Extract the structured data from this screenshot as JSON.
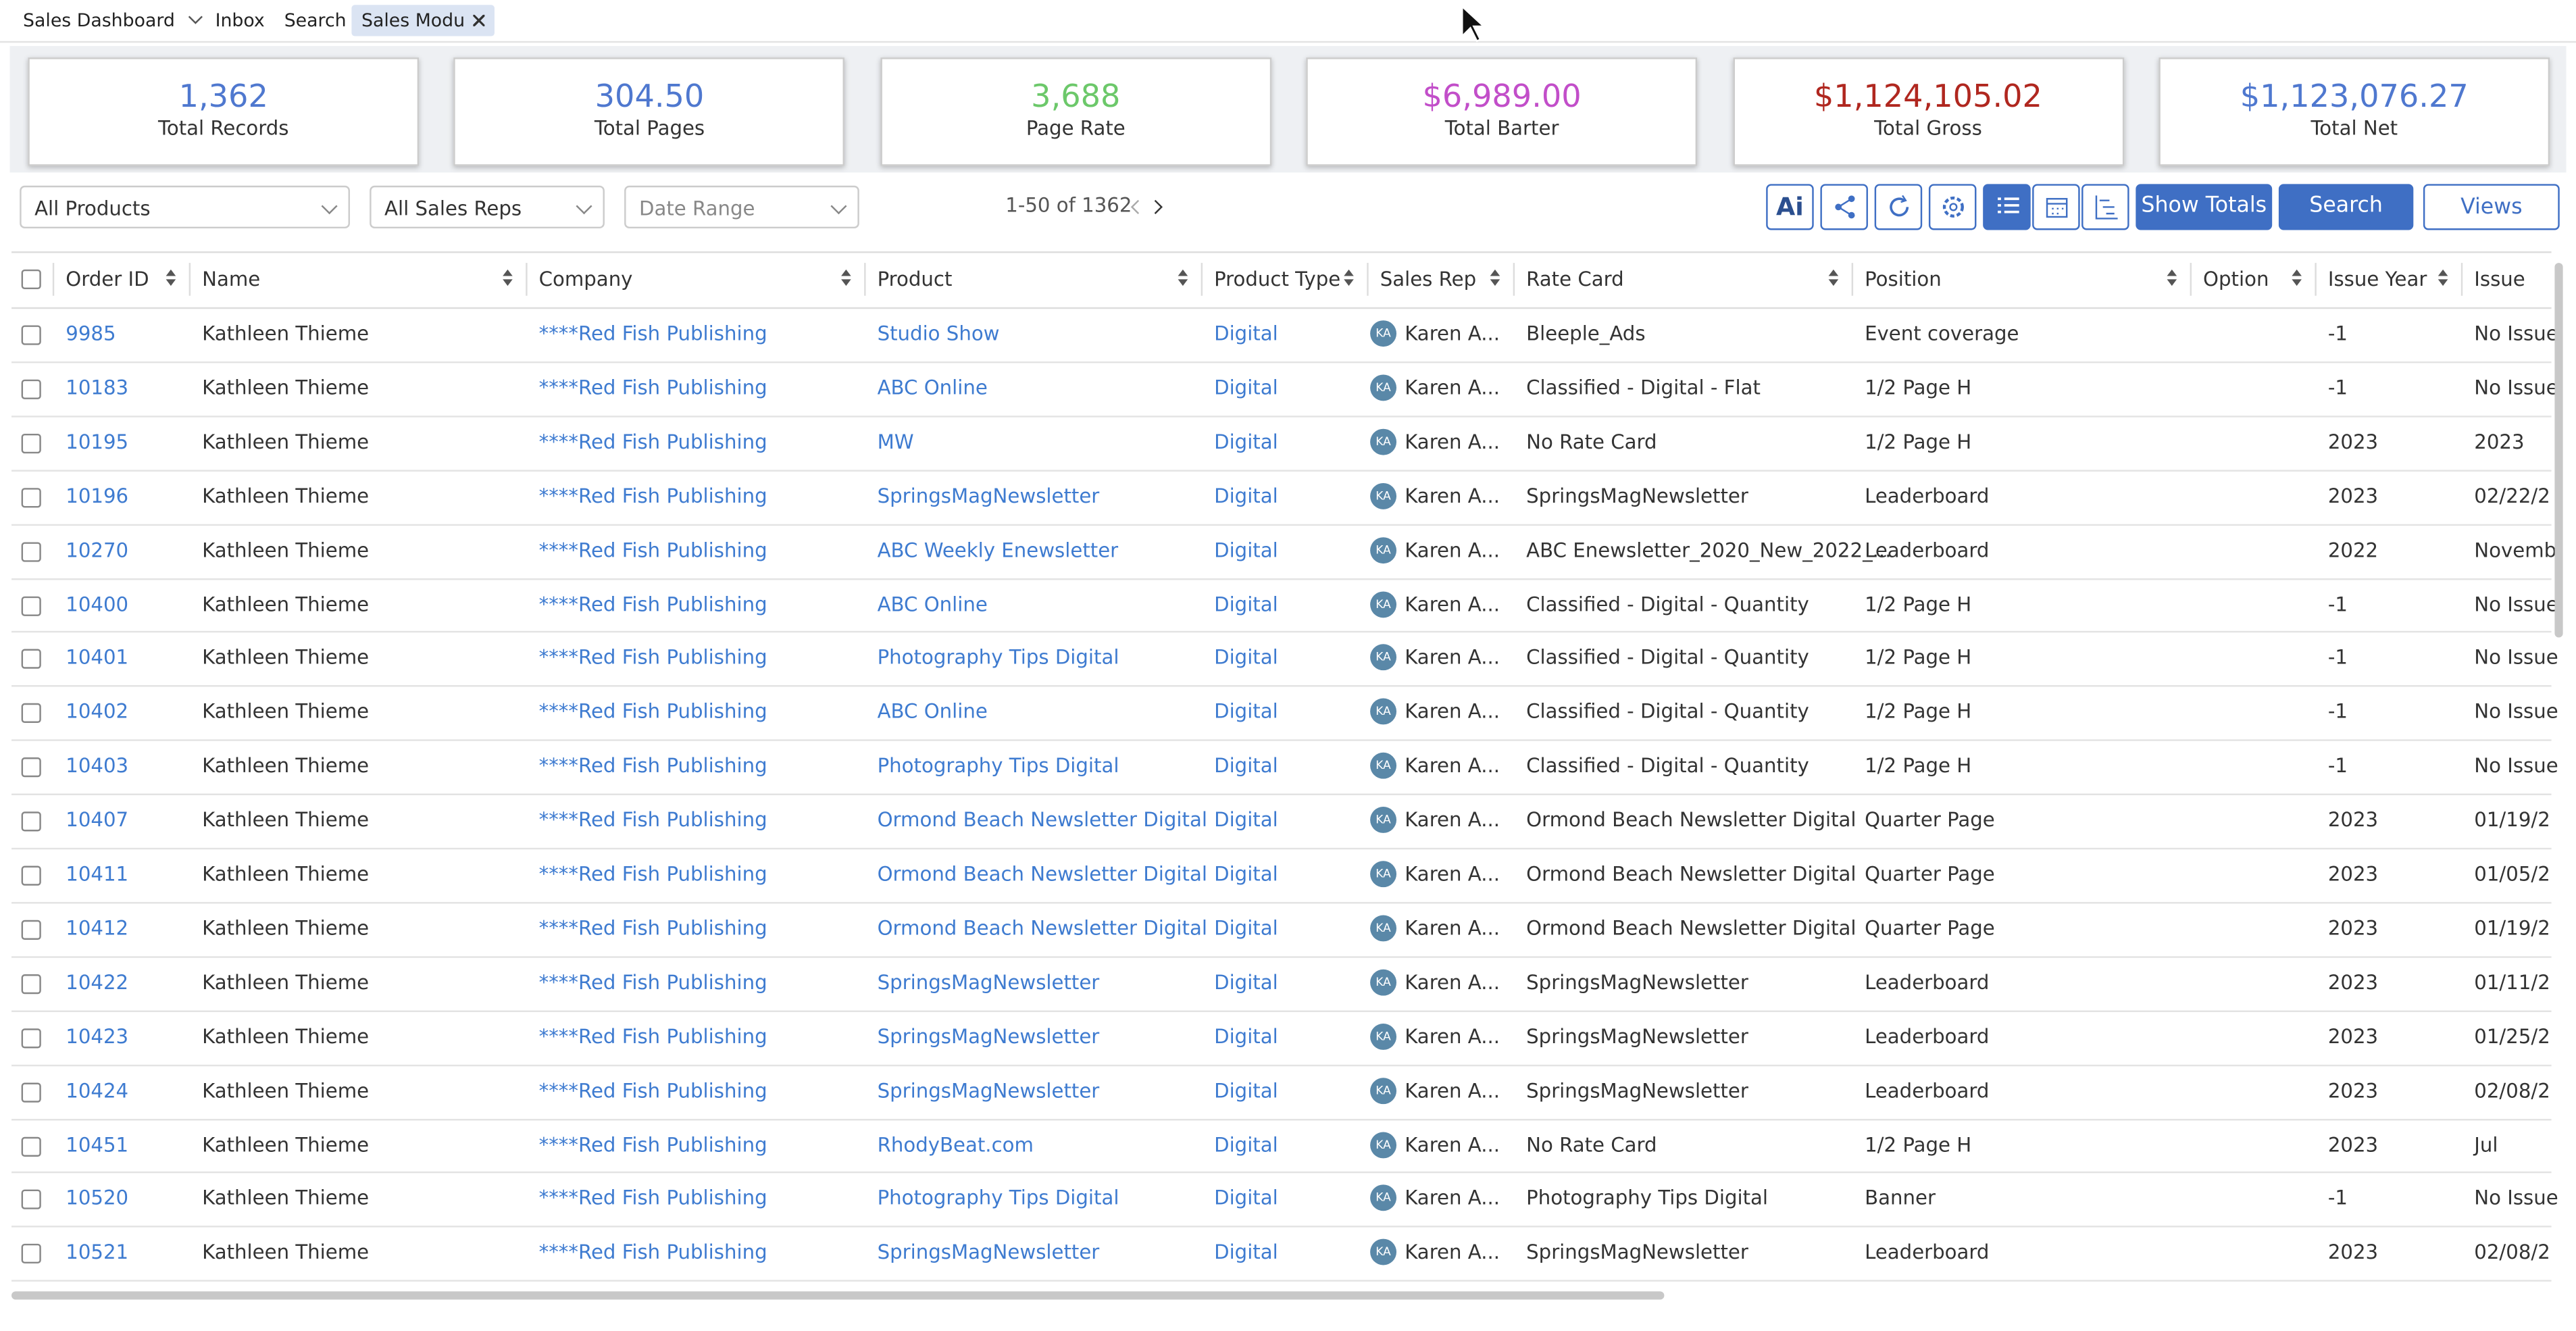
{
  "tabs": [
    "Sales Dashboard",
    "Inbox",
    "Search",
    "Sales Modu"
  ],
  "stats": [
    {
      "value": "1,362",
      "label": "Total Records"
    },
    {
      "value": "304.50",
      "label": "Total Pages"
    },
    {
      "value": "3,688",
      "label": "Page Rate"
    },
    {
      "value": "$6,989.00",
      "label": "Total Barter"
    },
    {
      "value": "$1,124,105.02",
      "label": "Total Gross"
    },
    {
      "value": "$1,123,076.27",
      "label": "Total Net"
    }
  ],
  "filters": [
    "All Products",
    "All Sales Reps",
    "Date Range"
  ],
  "pagination": "1-50 of 1362",
  "buttons": {
    "ai": "Ai",
    "show_totals": "Show Totals",
    "search": "Search",
    "views": "Views"
  },
  "table": {
    "columns": [
      "Order ID",
      "Name",
      "Company",
      "Product",
      "Product Type",
      "Sales Rep",
      "Rate Card",
      "Position",
      "Option",
      "Issue Year",
      "Issue"
    ],
    "rows": [
      [
        "9985",
        "Kathleen Thieme",
        "****Red Fish Publishing",
        "Studio Show",
        "Digital",
        "KA",
        "Karen A...",
        "Bleeple_Ads",
        "Event coverage",
        "-1",
        "No Issue"
      ],
      [
        "10183",
        "Kathleen Thieme",
        "****Red Fish Publishing",
        "ABC Online",
        "Digital",
        "KA",
        "Karen A...",
        "Classified - Digital - Flat",
        "1/2 Page H",
        "-1",
        "No Issue"
      ],
      [
        "10195",
        "Kathleen Thieme",
        "****Red Fish Publishing",
        "MW",
        "Digital",
        "KA",
        "Karen A...",
        "No Rate Card",
        "1/2 Page H",
        "2023",
        "2023"
      ],
      [
        "10196",
        "Kathleen Thieme",
        "****Red Fish Publishing",
        "SpringsMagNewsletter",
        "Digital",
        "KA",
        "Karen A...",
        "SpringsMagNewsletter",
        "Leaderboard",
        "2023",
        "02/22/2"
      ],
      [
        "10270",
        "Kathleen Thieme",
        "****Red Fish Publishing",
        "ABC Weekly Enewsletter",
        "Digital",
        "KA",
        "Karen A...",
        "ABC Enewsletter_2020_New_2022_...",
        "Leaderboard",
        "2022",
        "Novemb"
      ],
      [
        "10400",
        "Kathleen Thieme",
        "****Red Fish Publishing",
        "ABC Online",
        "Digital",
        "KA",
        "Karen A...",
        "Classified - Digital - Quantity",
        "1/2 Page H",
        "-1",
        "No Issue"
      ],
      [
        "10401",
        "Kathleen Thieme",
        "****Red Fish Publishing",
        "Photography Tips Digital",
        "Digital",
        "KA",
        "Karen A...",
        "Classified - Digital - Quantity",
        "1/2 Page H",
        "-1",
        "No Issue"
      ],
      [
        "10402",
        "Kathleen Thieme",
        "****Red Fish Publishing",
        "ABC Online",
        "Digital",
        "KA",
        "Karen A...",
        "Classified - Digital - Quantity",
        "1/2 Page H",
        "-1",
        "No Issue"
      ],
      [
        "10403",
        "Kathleen Thieme",
        "****Red Fish Publishing",
        "Photography Tips Digital",
        "Digital",
        "KA",
        "Karen A...",
        "Classified - Digital - Quantity",
        "1/2 Page H",
        "-1",
        "No Issue"
      ],
      [
        "10407",
        "Kathleen Thieme",
        "****Red Fish Publishing",
        "Ormond Beach Newsletter Digital",
        "Digital",
        "KA",
        "Karen A...",
        "Ormond Beach Newsletter Digital",
        "Quarter Page",
        "2023",
        "01/19/2"
      ],
      [
        "10411",
        "Kathleen Thieme",
        "****Red Fish Publishing",
        "Ormond Beach Newsletter Digital",
        "Digital",
        "KA",
        "Karen A...",
        "Ormond Beach Newsletter Digital",
        "Quarter Page",
        "2023",
        "01/05/2"
      ],
      [
        "10412",
        "Kathleen Thieme",
        "****Red Fish Publishing",
        "Ormond Beach Newsletter Digital",
        "Digital",
        "KA",
        "Karen A...",
        "Ormond Beach Newsletter Digital",
        "Quarter Page",
        "2023",
        "01/19/2"
      ],
      [
        "10422",
        "Kathleen Thieme",
        "****Red Fish Publishing",
        "SpringsMagNewsletter",
        "Digital",
        "KA",
        "Karen A...",
        "SpringsMagNewsletter",
        "Leaderboard",
        "2023",
        "01/11/2"
      ],
      [
        "10423",
        "Kathleen Thieme",
        "****Red Fish Publishing",
        "SpringsMagNewsletter",
        "Digital",
        "KA",
        "Karen A...",
        "SpringsMagNewsletter",
        "Leaderboard",
        "2023",
        "01/25/2"
      ],
      [
        "10424",
        "Kathleen Thieme",
        "****Red Fish Publishing",
        "SpringsMagNewsletter",
        "Digital",
        "KA",
        "Karen A...",
        "SpringsMagNewsletter",
        "Leaderboard",
        "2023",
        "02/08/2"
      ],
      [
        "10451",
        "Kathleen Thieme",
        "****Red Fish Publishing",
        "RhodyBeat.com",
        "Digital",
        "KA",
        "Karen A...",
        "No Rate Card",
        "1/2 Page H",
        "2023",
        "Jul"
      ],
      [
        "10520",
        "Kathleen Thieme",
        "****Red Fish Publishing",
        "Photography Tips Digital",
        "Digital",
        "KA",
        "Karen A...",
        "Photography Tips Digital",
        "Banner",
        "-1",
        "No Issue"
      ],
      [
        "10521",
        "Kathleen Thieme",
        "****Red Fish Publishing",
        "SpringsMagNewsletter",
        "Digital",
        "KA",
        "Karen A...",
        "SpringsMagNewsletter",
        "Leaderboard",
        "2023",
        "02/08/2"
      ]
    ]
  }
}
